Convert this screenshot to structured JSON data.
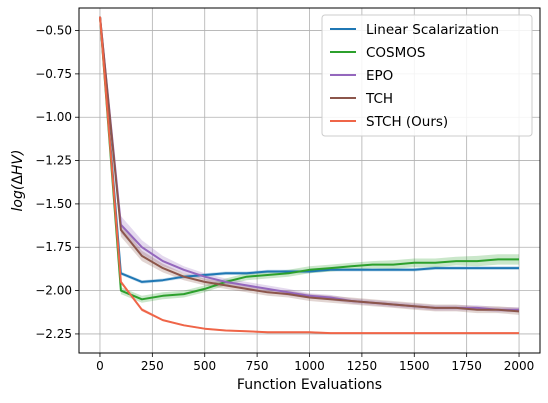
{
  "chart_data": {
    "type": "line",
    "title": "",
    "xlabel": "Function Evaluations",
    "ylabel_parts": {
      "prefix": "log(",
      "symbol": "Δ",
      "var": "HV",
      "suffix": ")"
    },
    "xlim": [
      -100,
      2100
    ],
    "ylim": [
      -2.36,
      -0.37
    ],
    "xticks": [
      0,
      250,
      500,
      750,
      1000,
      1250,
      1500,
      1750,
      2000
    ],
    "xtick_labels": [
      "0",
      "250",
      "500",
      "750",
      "1000",
      "1250",
      "1500",
      "1750",
      "2000"
    ],
    "yticks": [
      -0.5,
      -0.75,
      -1.0,
      -1.25,
      -1.5,
      -1.75,
      -2.0,
      -2.25
    ],
    "ytick_labels": [
      "−0.50",
      "−0.75",
      "−1.00",
      "−1.25",
      "−1.50",
      "−1.75",
      "−2.00",
      "−2.25"
    ],
    "grid": true,
    "legend_position": "top-right",
    "series": [
      {
        "name": "Linear Scalarization",
        "color": "#1f77b4",
        "x": [
          0,
          100,
          200,
          300,
          400,
          500,
          600,
          700,
          800,
          900,
          1000,
          1100,
          1200,
          1300,
          1400,
          1500,
          1600,
          1700,
          1800,
          1900,
          2000
        ],
        "y": [
          -0.42,
          -1.9,
          -1.95,
          -1.94,
          -1.92,
          -1.91,
          -1.9,
          -1.9,
          -1.89,
          -1.89,
          -1.89,
          -1.88,
          -1.88,
          -1.88,
          -1.88,
          -1.88,
          -1.87,
          -1.87,
          -1.87,
          -1.87,
          -1.87
        ],
        "band": [
          0.0,
          0.01,
          0.01,
          0.01,
          0.01,
          0.01,
          0.01,
          0.01,
          0.01,
          0.01,
          0.01,
          0.01,
          0.01,
          0.01,
          0.01,
          0.01,
          0.01,
          0.01,
          0.01,
          0.01,
          0.01
        ]
      },
      {
        "name": "COSMOS",
        "color": "#2ca02c",
        "x": [
          0,
          100,
          200,
          300,
          400,
          500,
          600,
          700,
          800,
          900,
          1000,
          1100,
          1200,
          1300,
          1400,
          1500,
          1600,
          1700,
          1800,
          1900,
          2000
        ],
        "y": [
          -0.42,
          -2.0,
          -2.05,
          -2.03,
          -2.02,
          -1.99,
          -1.95,
          -1.92,
          -1.91,
          -1.9,
          -1.88,
          -1.87,
          -1.86,
          -1.85,
          -1.85,
          -1.84,
          -1.84,
          -1.83,
          -1.83,
          -1.82,
          -1.82
        ],
        "band": [
          0.0,
          0.02,
          0.02,
          0.02,
          0.02,
          0.02,
          0.02,
          0.02,
          0.02,
          0.02,
          0.02,
          0.02,
          0.02,
          0.02,
          0.025,
          0.025,
          0.025,
          0.025,
          0.03,
          0.03,
          0.03
        ]
      },
      {
        "name": "EPO",
        "color": "#9467bd",
        "x": [
          0,
          100,
          200,
          300,
          400,
          500,
          600,
          700,
          800,
          900,
          1000,
          1100,
          1200,
          1300,
          1400,
          1500,
          1600,
          1700,
          1800,
          1900,
          2000
        ],
        "y": [
          -0.42,
          -1.62,
          -1.75,
          -1.83,
          -1.88,
          -1.92,
          -1.95,
          -1.97,
          -1.99,
          -2.01,
          -2.03,
          -2.04,
          -2.06,
          -2.07,
          -2.08,
          -2.09,
          -2.1,
          -2.1,
          -2.1,
          -2.11,
          -2.11
        ],
        "band": [
          0.0,
          0.05,
          0.04,
          0.03,
          0.02,
          0.02,
          0.02,
          0.02,
          0.02,
          0.02,
          0.015,
          0.015,
          0.015,
          0.015,
          0.015,
          0.015,
          0.015,
          0.015,
          0.015,
          0.015,
          0.015
        ]
      },
      {
        "name": "TCH",
        "color": "#8c564b",
        "x": [
          0,
          100,
          200,
          300,
          400,
          500,
          600,
          700,
          800,
          900,
          1000,
          1100,
          1200,
          1300,
          1400,
          1500,
          1600,
          1700,
          1800,
          1900,
          2000
        ],
        "y": [
          -0.42,
          -1.65,
          -1.8,
          -1.87,
          -1.92,
          -1.95,
          -1.97,
          -1.99,
          -2.01,
          -2.02,
          -2.04,
          -2.05,
          -2.06,
          -2.07,
          -2.08,
          -2.09,
          -2.1,
          -2.1,
          -2.11,
          -2.11,
          -2.12
        ],
        "band": [
          0.0,
          0.04,
          0.03,
          0.025,
          0.02,
          0.02,
          0.02,
          0.02,
          0.02,
          0.02,
          0.02,
          0.02,
          0.02,
          0.02,
          0.02,
          0.02,
          0.02,
          0.02,
          0.02,
          0.02,
          0.02
        ]
      },
      {
        "name": "STCH (Ours)",
        "color": "#ef6548",
        "x": [
          0,
          100,
          200,
          300,
          400,
          500,
          600,
          700,
          800,
          900,
          1000,
          1100,
          1200,
          1300,
          1400,
          1500,
          1600,
          1700,
          1800,
          1900,
          2000
        ],
        "y": [
          -0.42,
          -1.95,
          -2.11,
          -2.17,
          -2.2,
          -2.22,
          -2.23,
          -2.235,
          -2.24,
          -2.24,
          -2.24,
          -2.245,
          -2.245,
          -2.245,
          -2.245,
          -2.245,
          -2.245,
          -2.245,
          -2.245,
          -2.245,
          -2.245
        ],
        "band": [
          0.0,
          0.01,
          0.01,
          0.005,
          0.005,
          0.005,
          0.005,
          0.005,
          0.005,
          0.005,
          0.005,
          0.005,
          0.005,
          0.005,
          0.005,
          0.005,
          0.005,
          0.005,
          0.005,
          0.005,
          0.005
        ]
      }
    ]
  }
}
